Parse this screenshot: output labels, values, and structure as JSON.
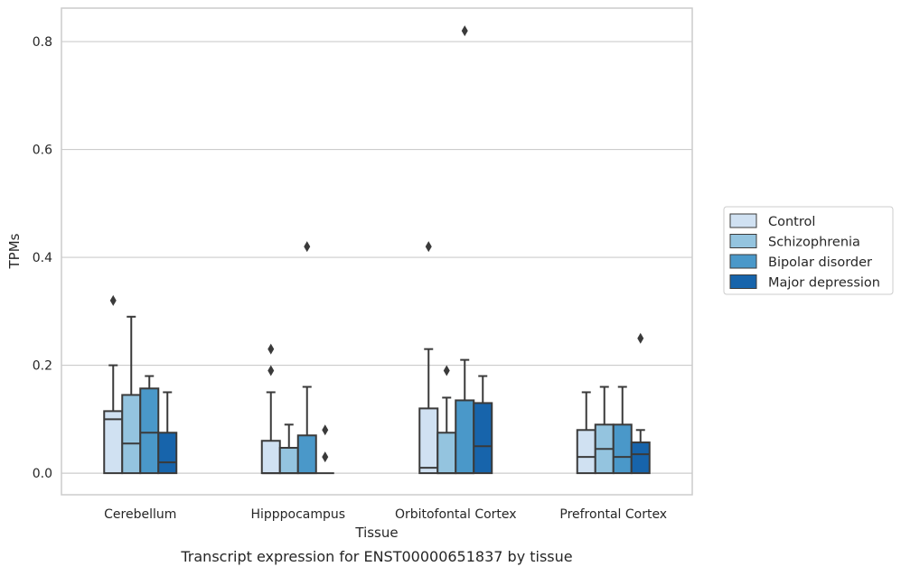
{
  "caption": "Transcript expression for ENST00000651837 by tissue",
  "chart_data": {
    "type": "box",
    "title": "",
    "xlabel": "Tissue",
    "ylabel": "TPMs",
    "ylim": [
      -0.04,
      0.862
    ],
    "yticks": [
      0.0,
      0.2,
      0.4,
      0.6,
      0.8
    ],
    "ytick_labels": [
      "0.0",
      "0.2",
      "0.4",
      "0.6",
      "0.8"
    ],
    "grid": "horizontal",
    "legend_position": "right",
    "categories": [
      "Cerebellum",
      "Hipppocampus",
      "Orbitofontal Cortex",
      "Prefrontal Cortex"
    ],
    "series": [
      {
        "name": "Control",
        "color": "#d0e1f2",
        "boxes": [
          {
            "q1": 0.0,
            "median": 0.1,
            "q3": 0.115,
            "whisker_low": 0.0,
            "whisker_high": 0.2,
            "outliers": [
              0.32
            ]
          },
          {
            "q1": 0.0,
            "median": 0.0,
            "q3": 0.06,
            "whisker_low": 0.0,
            "whisker_high": 0.15,
            "outliers": [
              0.19,
              0.23
            ]
          },
          {
            "q1": 0.0,
            "median": 0.01,
            "q3": 0.12,
            "whisker_low": 0.0,
            "whisker_high": 0.23,
            "outliers": [
              0.42
            ]
          },
          {
            "q1": 0.0,
            "median": 0.03,
            "q3": 0.08,
            "whisker_low": 0.0,
            "whisker_high": 0.15,
            "outliers": []
          }
        ]
      },
      {
        "name": "Schizophrenia",
        "color": "#94c4df",
        "boxes": [
          {
            "q1": 0.0,
            "median": 0.055,
            "q3": 0.145,
            "whisker_low": 0.0,
            "whisker_high": 0.29,
            "outliers": []
          },
          {
            "q1": 0.0,
            "median": 0.0,
            "q3": 0.047,
            "whisker_low": 0.0,
            "whisker_high": 0.09,
            "outliers": []
          },
          {
            "q1": 0.0,
            "median": 0.0,
            "q3": 0.075,
            "whisker_low": 0.0,
            "whisker_high": 0.14,
            "outliers": [
              0.19
            ]
          },
          {
            "q1": 0.0,
            "median": 0.045,
            "q3": 0.09,
            "whisker_low": 0.0,
            "whisker_high": 0.16,
            "outliers": []
          }
        ]
      },
      {
        "name": "Bipolar disorder",
        "color": "#4a98c9",
        "boxes": [
          {
            "q1": 0.0,
            "median": 0.075,
            "q3": 0.157,
            "whisker_low": 0.0,
            "whisker_high": 0.18,
            "outliers": []
          },
          {
            "q1": 0.0,
            "median": 0.0,
            "q3": 0.07,
            "whisker_low": 0.0,
            "whisker_high": 0.16,
            "outliers": [
              0.42
            ]
          },
          {
            "q1": 0.0,
            "median": 0.0,
            "q3": 0.135,
            "whisker_low": 0.0,
            "whisker_high": 0.21,
            "outliers": [
              0.82
            ]
          },
          {
            "q1": 0.0,
            "median": 0.03,
            "q3": 0.09,
            "whisker_low": 0.0,
            "whisker_high": 0.16,
            "outliers": []
          }
        ]
      },
      {
        "name": "Major depression",
        "color": "#1764ab",
        "boxes": [
          {
            "q1": 0.0,
            "median": 0.02,
            "q3": 0.075,
            "whisker_low": 0.0,
            "whisker_high": 0.15,
            "outliers": []
          },
          {
            "q1": 0.0,
            "median": 0.0,
            "q3": 0.0,
            "whisker_low": 0.0,
            "whisker_high": 0.0,
            "outliers": [
              0.03,
              0.08
            ]
          },
          {
            "q1": 0.0,
            "median": 0.05,
            "q3": 0.13,
            "whisker_low": 0.0,
            "whisker_high": 0.18,
            "outliers": []
          },
          {
            "q1": 0.0,
            "median": 0.035,
            "q3": 0.057,
            "whisker_low": 0.0,
            "whisker_high": 0.08,
            "outliers": [
              0.25
            ]
          }
        ]
      }
    ]
  }
}
